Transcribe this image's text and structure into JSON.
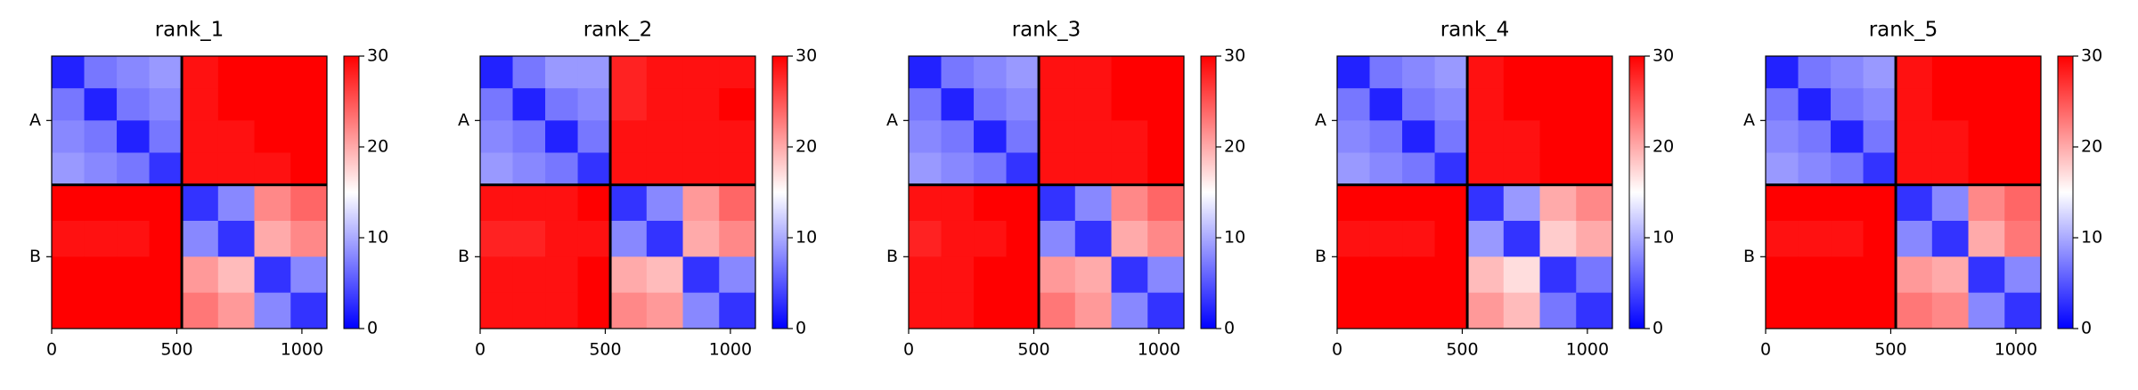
{
  "chart_data": [
    {
      "type": "heatmap",
      "title": "rank_1",
      "xlim": [
        0,
        1100
      ],
      "xticks": [
        0,
        500,
        1000
      ],
      "edges": [
        0,
        130,
        260,
        390,
        520,
        665,
        810,
        955,
        1100
      ],
      "chains": [
        {
          "name": "A",
          "start": 0,
          "end": 520
        },
        {
          "name": "B",
          "start": 520,
          "end": 1100
        }
      ],
      "clim": [
        0,
        30
      ],
      "cticks": [
        0,
        10,
        20,
        30
      ],
      "matrix": [
        [
          2,
          7,
          8,
          9,
          29,
          30,
          30,
          30
        ],
        [
          7,
          2,
          7,
          8,
          29,
          30,
          30,
          30
        ],
        [
          8,
          7,
          2,
          7,
          29,
          29,
          30,
          30
        ],
        [
          9,
          8,
          7,
          3,
          29,
          29,
          29,
          30
        ],
        [
          30,
          30,
          30,
          30,
          3,
          8,
          22,
          24
        ],
        [
          29,
          29,
          29,
          30,
          8,
          3,
          20,
          22
        ],
        [
          30,
          30,
          30,
          30,
          21,
          19,
          3,
          8
        ],
        [
          30,
          30,
          30,
          30,
          23,
          21,
          8,
          3
        ]
      ]
    },
    {
      "type": "heatmap",
      "title": "rank_2",
      "xlim": [
        0,
        1100
      ],
      "xticks": [
        0,
        500,
        1000
      ],
      "edges": [
        0,
        130,
        260,
        390,
        520,
        665,
        810,
        955,
        1100
      ],
      "chains": [
        {
          "name": "A",
          "start": 0,
          "end": 520
        },
        {
          "name": "B",
          "start": 520,
          "end": 1100
        }
      ],
      "clim": [
        0,
        30
      ],
      "cticks": [
        0,
        10,
        20,
        30
      ],
      "matrix": [
        [
          2,
          7,
          9,
          9,
          28,
          29,
          29,
          29
        ],
        [
          7,
          2,
          7,
          8,
          28,
          29,
          29,
          30
        ],
        [
          8,
          7,
          2,
          7,
          29,
          29,
          29,
          29
        ],
        [
          9,
          8,
          7,
          3,
          29,
          29,
          29,
          29
        ],
        [
          29,
          29,
          29,
          30,
          3,
          8,
          21,
          24
        ],
        [
          28,
          28,
          29,
          29,
          8,
          3,
          20,
          22
        ],
        [
          29,
          29,
          29,
          30,
          20,
          19,
          3,
          8
        ],
        [
          29,
          29,
          29,
          30,
          22,
          21,
          8,
          3
        ]
      ]
    },
    {
      "type": "heatmap",
      "title": "rank_3",
      "xlim": [
        0,
        1100
      ],
      "xticks": [
        0,
        500,
        1000
      ],
      "edges": [
        0,
        130,
        260,
        390,
        520,
        665,
        810,
        955,
        1100
      ],
      "chains": [
        {
          "name": "A",
          "start": 0,
          "end": 520
        },
        {
          "name": "B",
          "start": 520,
          "end": 1100
        }
      ],
      "clim": [
        0,
        30
      ],
      "cticks": [
        0,
        10,
        20,
        30
      ],
      "matrix": [
        [
          2,
          7,
          8,
          9,
          29,
          29,
          30,
          30
        ],
        [
          7,
          2,
          7,
          8,
          29,
          29,
          30,
          30
        ],
        [
          8,
          7,
          2,
          7,
          29,
          29,
          29,
          30
        ],
        [
          9,
          8,
          7,
          3,
          29,
          29,
          29,
          30
        ],
        [
          29,
          29,
          30,
          30,
          3,
          8,
          22,
          24
        ],
        [
          28,
          29,
          29,
          30,
          8,
          3,
          20,
          22
        ],
        [
          29,
          29,
          30,
          30,
          21,
          20,
          3,
          8
        ],
        [
          29,
          29,
          30,
          30,
          23,
          21,
          8,
          3
        ]
      ]
    },
    {
      "type": "heatmap",
      "title": "rank_4",
      "xlim": [
        0,
        1100
      ],
      "xticks": [
        0,
        500,
        1000
      ],
      "edges": [
        0,
        130,
        260,
        390,
        520,
        665,
        810,
        955,
        1100
      ],
      "chains": [
        {
          "name": "A",
          "start": 0,
          "end": 520
        },
        {
          "name": "B",
          "start": 520,
          "end": 1100
        }
      ],
      "clim": [
        0,
        30
      ],
      "cticks": [
        0,
        10,
        20,
        30
      ],
      "matrix": [
        [
          2,
          7,
          8,
          9,
          29,
          30,
          30,
          30
        ],
        [
          7,
          2,
          7,
          8,
          29,
          30,
          30,
          30
        ],
        [
          8,
          7,
          2,
          7,
          29,
          29,
          30,
          30
        ],
        [
          9,
          8,
          7,
          3,
          29,
          29,
          30,
          30
        ],
        [
          30,
          30,
          30,
          30,
          3,
          9,
          20,
          22
        ],
        [
          29,
          29,
          29,
          30,
          9,
          3,
          18,
          20
        ],
        [
          30,
          30,
          30,
          30,
          19,
          17,
          3,
          7
        ],
        [
          30,
          30,
          30,
          30,
          21,
          19,
          7,
          3
        ]
      ]
    },
    {
      "type": "heatmap",
      "title": "rank_5",
      "xlim": [
        0,
        1100
      ],
      "xticks": [
        0,
        500,
        1000
      ],
      "edges": [
        0,
        130,
        260,
        390,
        520,
        665,
        810,
        955,
        1100
      ],
      "chains": [
        {
          "name": "A",
          "start": 0,
          "end": 520
        },
        {
          "name": "B",
          "start": 520,
          "end": 1100
        }
      ],
      "clim": [
        0,
        30
      ],
      "cticks": [
        0,
        10,
        20,
        30
      ],
      "matrix": [
        [
          2,
          7,
          8,
          9,
          29,
          30,
          30,
          30
        ],
        [
          7,
          2,
          7,
          8,
          29,
          30,
          30,
          30
        ],
        [
          8,
          7,
          2,
          7,
          29,
          29,
          30,
          30
        ],
        [
          9,
          8,
          7,
          3,
          29,
          29,
          30,
          30
        ],
        [
          30,
          30,
          30,
          30,
          3,
          8,
          22,
          24
        ],
        [
          29,
          29,
          29,
          30,
          8,
          3,
          20,
          23
        ],
        [
          30,
          30,
          30,
          30,
          21,
          20,
          3,
          8
        ],
        [
          30,
          30,
          30,
          30,
          23,
          22,
          8,
          3
        ]
      ]
    }
  ]
}
